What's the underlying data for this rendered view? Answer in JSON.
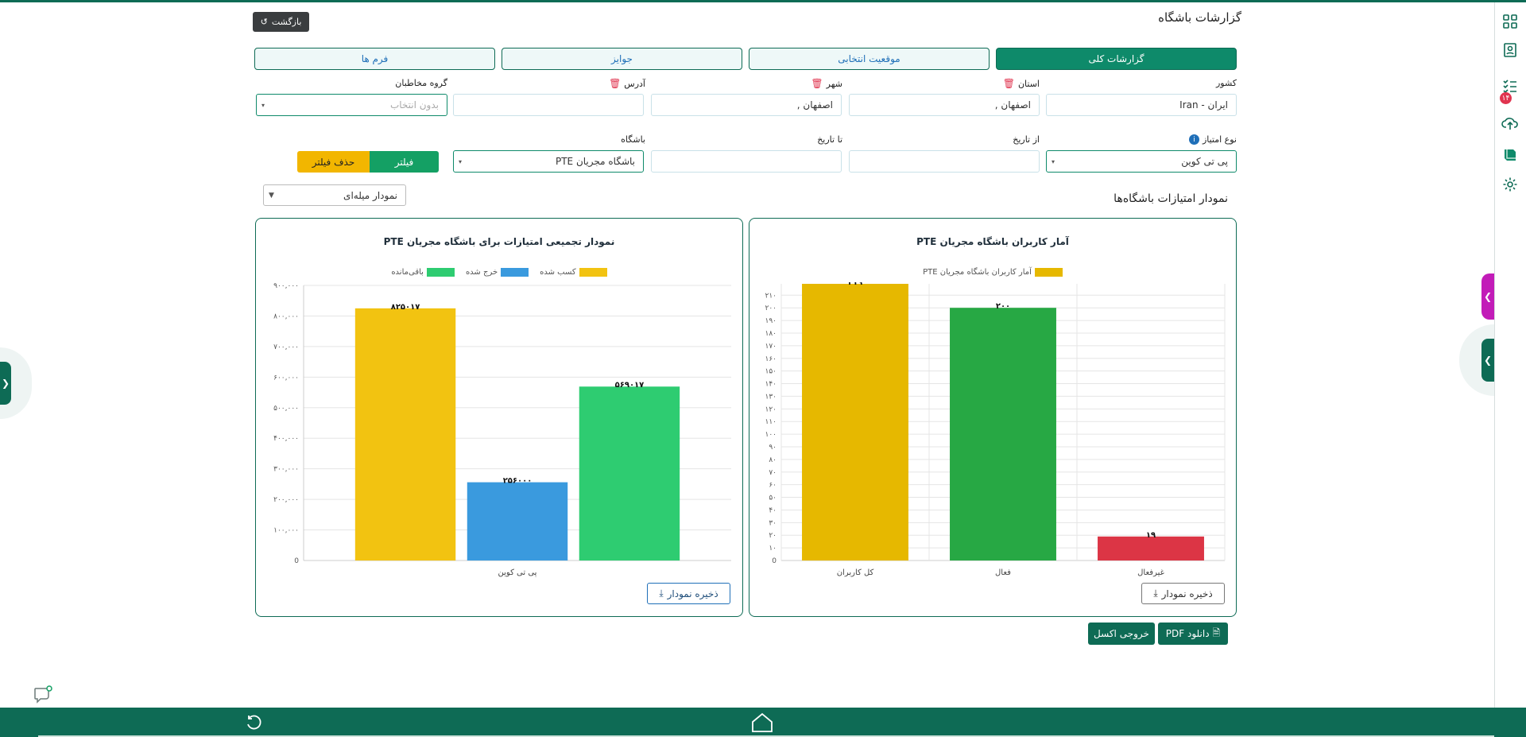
{
  "header": {
    "title": "گزارشات باشگاه",
    "back_label": "بازگشت"
  },
  "tabs": [
    {
      "label": "گزارشات کلی",
      "active": true
    },
    {
      "label": "موقعیت انتخابی",
      "active": false
    },
    {
      "label": "جوایز",
      "active": false
    },
    {
      "label": "فرم ها",
      "active": false
    }
  ],
  "filters": {
    "country": {
      "label": "کشور",
      "value": "ایران - Iran"
    },
    "province": {
      "label": "استان",
      "value": "اصفهان ,"
    },
    "city": {
      "label": "شهر",
      "value": "اصفهان ,"
    },
    "address": {
      "label": "آدرس",
      "value": ""
    },
    "audience": {
      "label": "گروه مخاطبان",
      "placeholder": "بدون انتخاب"
    },
    "point_type": {
      "label": "نوع امتیاز",
      "value": "پی تی کوین"
    },
    "from_date": {
      "label": "از تاریخ",
      "value": ""
    },
    "to_date": {
      "label": "تا تاریخ",
      "value": ""
    },
    "club": {
      "label": "باشگاه",
      "value": "باشگاه مجریان PTE"
    },
    "filter_label": "فیلتر",
    "clear_label": "حذف فیلتر"
  },
  "section": {
    "title": "نمودار امتیازات باشگاه‌ها",
    "chart_type": "نمودار میله‌ای"
  },
  "save_chart_label": "ذخیره نمودار",
  "exports": {
    "pdf_label": "دانلود PDF",
    "excel_label": "خروجی اکسل"
  },
  "rail_badge": "۱۴",
  "colors": {
    "primary": "#0e6b55",
    "gold": "#f2c311",
    "blue": "#3a9ade",
    "green": "#2ecc71",
    "red": "#e0344f"
  },
  "chart_data": [
    {
      "type": "bar",
      "title": "آمار کاربران باشگاه مجریان PTE",
      "categories": [
        "کل کاربران",
        "فعال",
        "غیرفعال"
      ],
      "series": [
        {
          "name": "آمار کاربران باشگاه مجریان PTE",
          "values": [
            219,
            200,
            19
          ]
        }
      ],
      "bar_colors": [
        "#e6b800",
        "#27a844",
        "#dc3545"
      ],
      "value_labels": [
        "۲۱۹",
        "۲۰۰",
        "۱۹"
      ],
      "ylim": [
        0,
        219
      ],
      "yticks": [
        0,
        10,
        20,
        30,
        40,
        50,
        60,
        70,
        80,
        90,
        100,
        110,
        120,
        130,
        140,
        150,
        160,
        170,
        180,
        190,
        200,
        210
      ],
      "ytick_labels": [
        "0",
        "۱۰",
        "۲۰",
        "۳۰",
        "۴۰",
        "۵۰",
        "۶۰",
        "۷۰",
        "۸۰",
        "۹۰",
        "۱۰۰",
        "۱۱۰",
        "۱۲۰",
        "۱۳۰",
        "۱۴۰",
        "۱۵۰",
        "۱۶۰",
        "۱۷۰",
        "۱۸۰",
        "۱۹۰",
        "۲۰۰",
        "۲۱۰"
      ],
      "grid": true
    },
    {
      "type": "bar",
      "title": "نمودار تجمیعی امتیازات برای باشگاه مجریان PTE",
      "categories": [
        "پی تی کوین"
      ],
      "series": [
        {
          "name": "کسب شده",
          "values": [
            825017
          ],
          "color": "#f2c311"
        },
        {
          "name": "خرج شده",
          "values": [
            256000
          ],
          "color": "#3a9ade"
        },
        {
          "name": "باقی‌مانده",
          "values": [
            569017
          ],
          "color": "#2ecc71"
        }
      ],
      "value_labels": [
        "۸۲۵۰۱۷",
        "۲۵۶۰۰۰",
        "۵۶۹۰۱۷"
      ],
      "ylim": [
        0,
        900000
      ],
      "yticks": [
        0,
        100000,
        200000,
        300000,
        400000,
        500000,
        600000,
        700000,
        800000,
        900000
      ],
      "ytick_labels": [
        "0",
        "۱۰۰,۰۰۰",
        "۲۰۰,۰۰۰",
        "۳۰۰,۰۰۰",
        "۴۰۰,۰۰۰",
        "۵۰۰,۰۰۰",
        "۶۰۰,۰۰۰",
        "۷۰۰,۰۰۰",
        "۸۰۰,۰۰۰",
        "۹۰۰,۰۰۰"
      ],
      "grid": true
    }
  ]
}
